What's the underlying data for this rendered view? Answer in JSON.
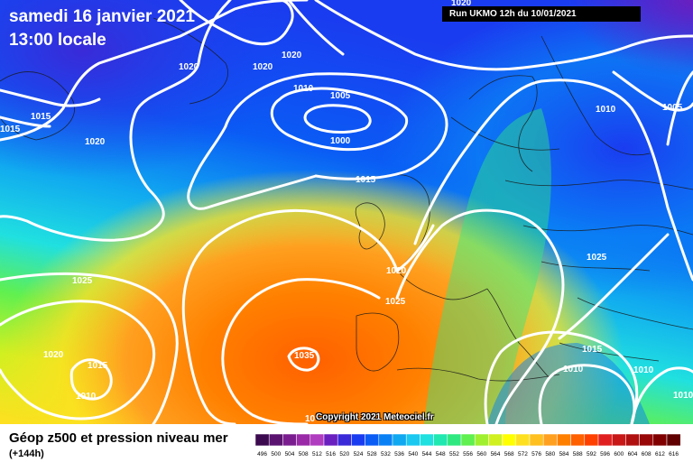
{
  "header": {
    "date": "samedi 16 janvier 2021",
    "time": "13:00 locale"
  },
  "run_info": "Run UKMO 12h du 10/01/2021",
  "copyright": "Copyright 2021 Meteociel.fr",
  "legend": {
    "title": "Géop z500 et pression niveau mer",
    "subtitle": "(+144h)",
    "scale_values": [
      "496",
      "500",
      "504",
      "508",
      "512",
      "516",
      "520",
      "524",
      "528",
      "532",
      "536",
      "540",
      "544",
      "548",
      "552",
      "556",
      "560",
      "564",
      "568",
      "572",
      "576",
      "580",
      "584",
      "588",
      "592",
      "596",
      "600",
      "604",
      "608",
      "612",
      "616"
    ],
    "scale_colors": [
      "#3b0a4f",
      "#5a1470",
      "#7a1e8f",
      "#9a2aa8",
      "#b03cbf",
      "#6a1fbf",
      "#3a2ad8",
      "#1a3cf0",
      "#0a5cf5",
      "#0a80f5",
      "#10a8f0",
      "#1ac8f0",
      "#20e0e0",
      "#20e8b0",
      "#30e880",
      "#60f050",
      "#a0f030",
      "#d0f020",
      "#ffff00",
      "#ffe020",
      "#ffc020",
      "#ffa020",
      "#ff8000",
      "#ff6000",
      "#ff4000",
      "#e02020",
      "#c81818",
      "#b01010",
      "#980808",
      "#800000",
      "#600000"
    ]
  },
  "isobars": [
    {
      "label": "1020"
    },
    {
      "label": "1020"
    },
    {
      "label": "1020"
    },
    {
      "label": "1020"
    },
    {
      "label": "1015"
    },
    {
      "label": "1015"
    },
    {
      "label": "1010"
    },
    {
      "label": "1005"
    },
    {
      "label": "1000"
    },
    {
      "label": "1010"
    },
    {
      "label": "1005"
    },
    {
      "label": "1015"
    },
    {
      "label": "1020"
    },
    {
      "label": "1025"
    },
    {
      "label": "1025"
    },
    {
      "label": "1025"
    },
    {
      "label": "1020"
    },
    {
      "label": "1015"
    },
    {
      "label": "1010"
    },
    {
      "label": "1035"
    },
    {
      "label": "1015"
    },
    {
      "label": "1010"
    },
    {
      "label": "1010"
    },
    {
      "label": "1010"
    },
    {
      "label": "10"
    },
    {
      "label": "1020"
    }
  ]
}
